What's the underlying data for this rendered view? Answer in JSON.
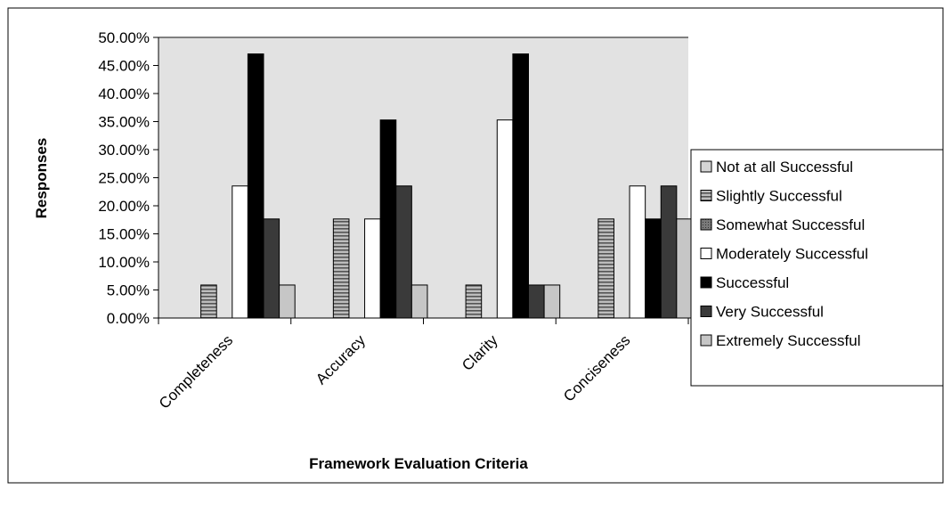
{
  "chart_data": {
    "type": "bar",
    "title": "",
    "xlabel": "Framework Evaluation Criteria",
    "ylabel": "Responses",
    "ylim": [
      0,
      0.5
    ],
    "y_ticks": [
      {
        "value": 0.0,
        "label": "0.00%"
      },
      {
        "value": 0.05,
        "label": "5.00%"
      },
      {
        "value": 0.1,
        "label": "10.00%"
      },
      {
        "value": 0.15,
        "label": "15.00%"
      },
      {
        "value": 0.2,
        "label": "20.00%"
      },
      {
        "value": 0.25,
        "label": "25.00%"
      },
      {
        "value": 0.3,
        "label": "30.00%"
      },
      {
        "value": 0.35,
        "label": "35.00%"
      },
      {
        "value": 0.4,
        "label": "40.00%"
      },
      {
        "value": 0.45,
        "label": "45.00%"
      },
      {
        "value": 0.5,
        "label": "50.00%"
      }
    ],
    "grid": false,
    "legend_position": "right",
    "categories": [
      "Completeness",
      "Accuracy",
      "Clarity",
      "Conciseness"
    ],
    "series": [
      {
        "name": "Not at all Successful",
        "color": "#d4d4d4",
        "pattern": "solid",
        "values": [
          0,
          0,
          0,
          0
        ]
      },
      {
        "name": "Slightly Successful",
        "color": "#a6a6a6",
        "pattern": "stripes",
        "values": [
          0.0588,
          0.1765,
          0.0588,
          0.1765
        ]
      },
      {
        "name": "Somewhat Successful",
        "color": "#6f6f6f",
        "pattern": "dots",
        "values": [
          0,
          0,
          0,
          0
        ]
      },
      {
        "name": "Moderately Successful",
        "color": "#ffffff",
        "pattern": "solid",
        "values": [
          0.2353,
          0.1765,
          0.3529,
          0.2353
        ]
      },
      {
        "name": "Successful",
        "color": "#000000",
        "pattern": "solid",
        "values": [
          0.4706,
          0.3529,
          0.4706,
          0.1765
        ]
      },
      {
        "name": "Very Successful",
        "color": "#3a3a3a",
        "pattern": "solid",
        "values": [
          0.1765,
          0.2353,
          0.0588,
          0.2353
        ]
      },
      {
        "name": "Extremely Successful",
        "color": "#c6c6c6",
        "pattern": "solid",
        "values": [
          0.0588,
          0.0588,
          0.0588,
          0.1765
        ]
      }
    ]
  },
  "colors": {
    "plot_background": "#e2e2e2",
    "outer_background": "#ffffff",
    "frame": "#000000"
  }
}
